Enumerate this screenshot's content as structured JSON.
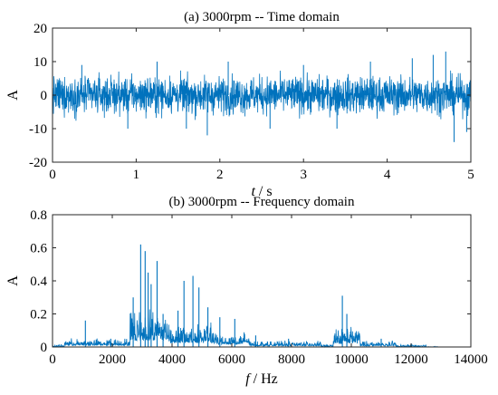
{
  "chart_data": [
    {
      "type": "line",
      "title": "(a) 3000rpm -- Time domain",
      "xlabel_var": "t",
      "xlabel_unit": " / s",
      "ylabel": "A",
      "xlim": [
        0,
        5
      ],
      "ylim": [
        -20,
        20
      ],
      "xticks": [
        "0",
        "1",
        "2",
        "3",
        "4",
        "5"
      ],
      "yticks": [
        "20",
        "10",
        "0",
        "-10",
        "-20"
      ],
      "grid": false,
      "color": "#0072BD",
      "series": [
        {
          "typical_amplitude": 6,
          "peaks": [
            {
              "x": 0.35,
              "y": 9
            },
            {
              "x": 0.9,
              "y": -10
            },
            {
              "x": 1.25,
              "y": 10
            },
            {
              "x": 1.6,
              "y": -10
            },
            {
              "x": 1.85,
              "y": -12
            },
            {
              "x": 2.1,
              "y": 10
            },
            {
              "x": 2.6,
              "y": -10
            },
            {
              "x": 3.0,
              "y": 9
            },
            {
              "x": 3.4,
              "y": -10
            },
            {
              "x": 3.8,
              "y": 10
            },
            {
              "x": 4.3,
              "y": 11
            },
            {
              "x": 4.55,
              "y": 12
            },
            {
              "x": 4.7,
              "y": 13
            },
            {
              "x": 4.8,
              "y": -14
            },
            {
              "x": 4.95,
              "y": -11
            }
          ]
        }
      ]
    },
    {
      "type": "line",
      "title": "(b) 3000rpm -- Frequency domain",
      "xlabel_var": "f",
      "xlabel_unit": " / Hz",
      "ylabel": "A",
      "xlim": [
        0,
        14000
      ],
      "ylim": [
        0,
        0.8
      ],
      "xticks": [
        "0",
        "2000",
        "4000",
        "6000",
        "8000",
        "10000",
        "12000",
        "14000"
      ],
      "yticks": [
        "0.8",
        "0.6",
        "0.4",
        "0.2",
        "0"
      ],
      "grid": false,
      "color": "#0072BD",
      "series": [
        {
          "peaks": [
            {
              "x": 1100,
              "y": 0.16
            },
            {
              "x": 1950,
              "y": 0.05
            },
            {
              "x": 2700,
              "y": 0.3
            },
            {
              "x": 2950,
              "y": 0.62
            },
            {
              "x": 3100,
              "y": 0.58
            },
            {
              "x": 3200,
              "y": 0.45
            },
            {
              "x": 3300,
              "y": 0.38
            },
            {
              "x": 3500,
              "y": 0.52
            },
            {
              "x": 3700,
              "y": 0.2
            },
            {
              "x": 4200,
              "y": 0.22
            },
            {
              "x": 4400,
              "y": 0.4
            },
            {
              "x": 4700,
              "y": 0.43
            },
            {
              "x": 4900,
              "y": 0.36
            },
            {
              "x": 5200,
              "y": 0.24
            },
            {
              "x": 5600,
              "y": 0.18
            },
            {
              "x": 6100,
              "y": 0.17
            },
            {
              "x": 6800,
              "y": 0.07
            },
            {
              "x": 7900,
              "y": 0.05
            },
            {
              "x": 9700,
              "y": 0.31
            },
            {
              "x": 9850,
              "y": 0.2
            },
            {
              "x": 11000,
              "y": 0.05
            }
          ]
        }
      ]
    }
  ]
}
